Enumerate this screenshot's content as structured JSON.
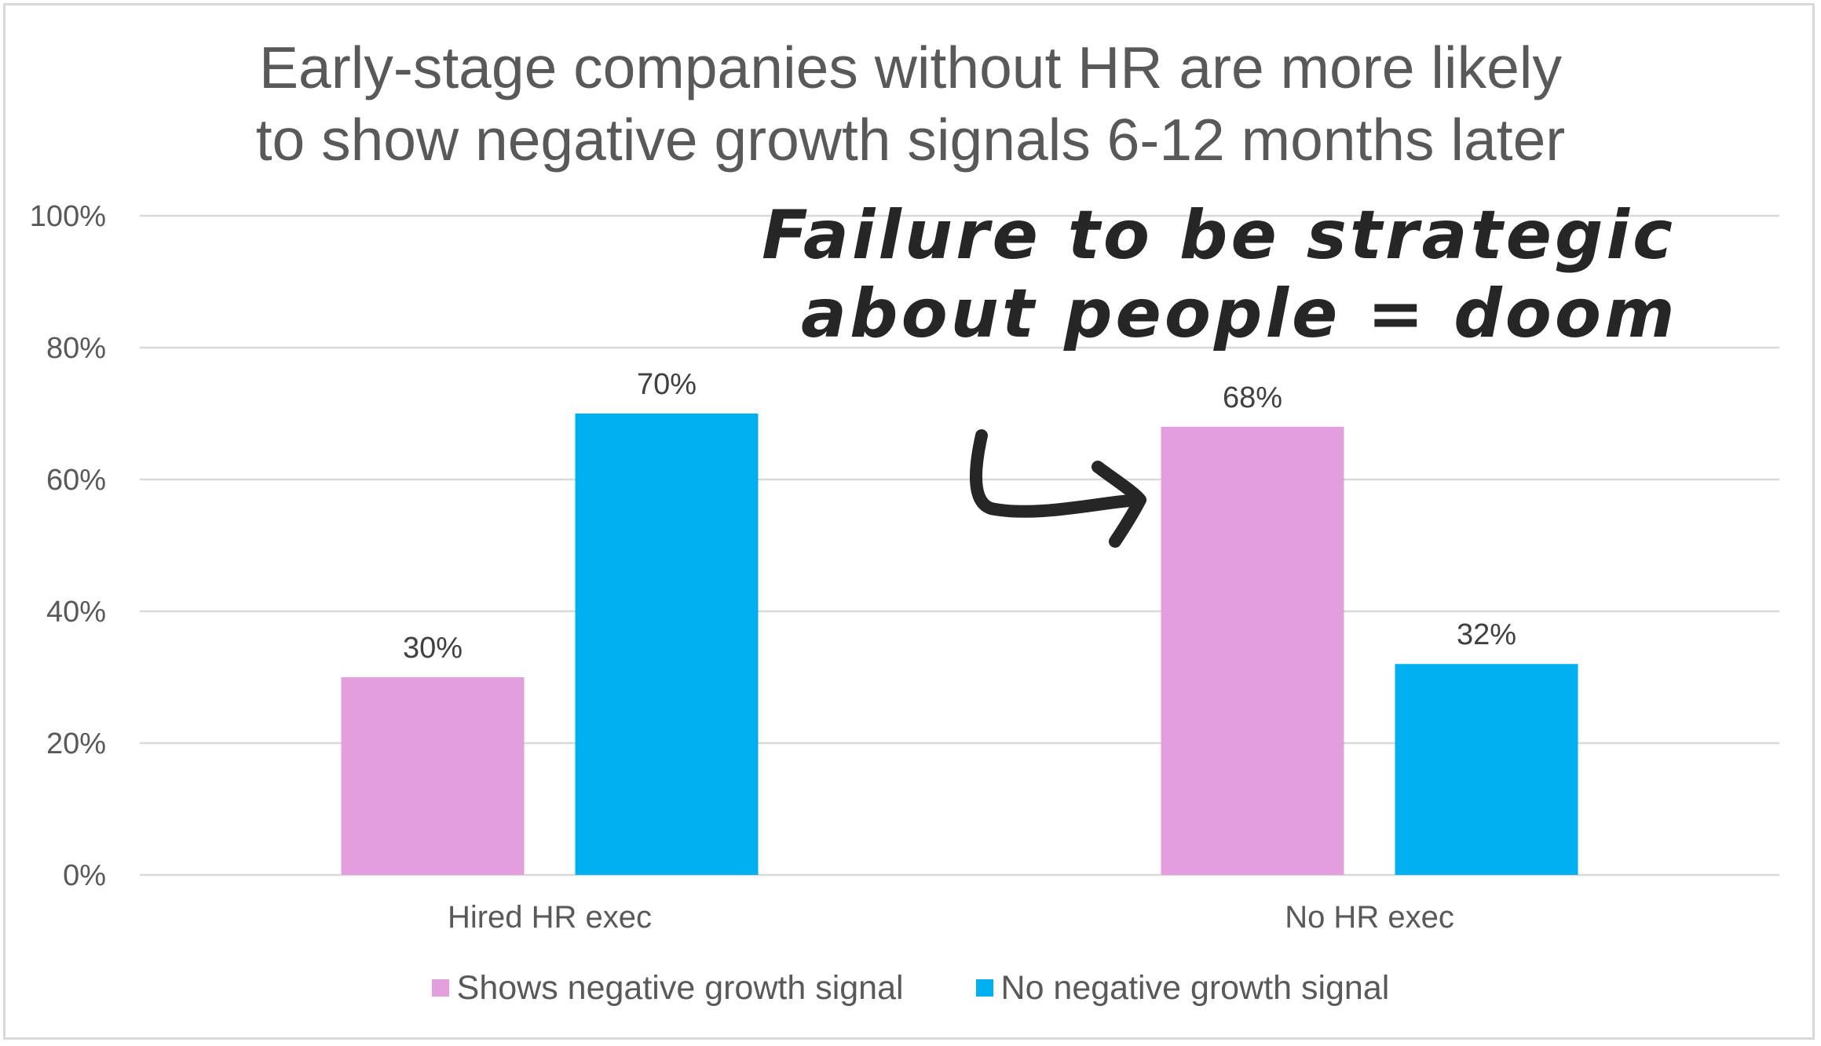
{
  "colors": {
    "series_negative": "#e39edd",
    "series_no_negative": "#00b0f0",
    "gridline": "#d9d9d9",
    "text": "#595959",
    "annotation": "#262626"
  },
  "annotation": {
    "line1": "Failure to be strategic",
    "line2": "about people = doom",
    "arrow_icon": "hand-drawn-arrow-icon"
  },
  "chart_data": {
    "type": "bar",
    "title": "Early-stage companies without HR are more likely to show negative growth signals 6-12 months later",
    "title_lines": [
      "Early-stage companies without HR are more likely",
      "to show negative growth signals 6-12 months later"
    ],
    "categories": [
      "Hired HR exec",
      "No HR exec"
    ],
    "series": [
      {
        "name": "Shows negative growth signal",
        "values": [
          30,
          68
        ],
        "labels": [
          "30%",
          "68%"
        ],
        "color": "#e39edd"
      },
      {
        "name": "No negative growth signal",
        "values": [
          70,
          32
        ],
        "labels": [
          "70%",
          "32%"
        ],
        "color": "#00b0f0"
      }
    ],
    "ylim": [
      0,
      100
    ],
    "yticks": [
      "0%",
      "20%",
      "40%",
      "60%",
      "80%",
      "100%"
    ],
    "ytick_values": [
      0,
      20,
      40,
      60,
      80,
      100
    ],
    "xlabel": "",
    "ylabel": "",
    "grid": true,
    "legend_position": "bottom"
  }
}
